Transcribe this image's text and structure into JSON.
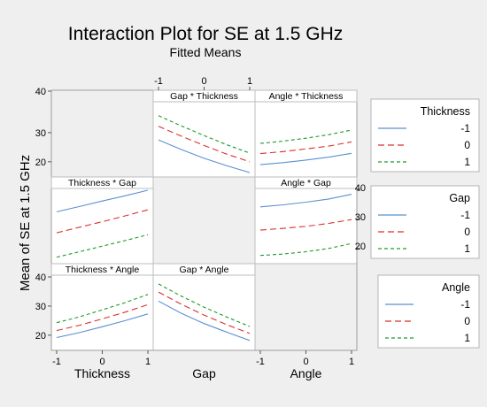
{
  "colors": {
    "background": "#efefef",
    "panel": "#ffffff",
    "empty_panel": "#efefef",
    "level_neg1": "#5b8fd1",
    "level_0": "#d9302a",
    "level_1": "#1d9a2a"
  },
  "chart_data": {
    "type": "line",
    "title": "Interaction Plot for SE at 1.5 GHz",
    "subtitle": "Fitted Means",
    "ylabel": "Mean of SE at 1.5 GHz",
    "factors": [
      "Thickness",
      "Gap",
      "Angle"
    ],
    "x_ticks": [
      "-1",
      "0",
      "1"
    ],
    "xlim": [
      -1,
      1
    ],
    "rows": [
      {
        "ylim": [
          16,
          40
        ],
        "y_ticks": [
          20,
          30,
          40
        ]
      },
      {
        "ylim": [
          16,
          40
        ],
        "y_ticks": [
          20,
          30,
          40
        ]
      },
      {
        "ylim": [
          16,
          40
        ],
        "y_ticks": [
          20,
          30,
          40
        ]
      }
    ],
    "panels": [
      {
        "title": "Gap * Thickness",
        "row": 0,
        "col": 1,
        "series": [
          {
            "level": "-1",
            "x": [
              -1,
              -0.5,
              0,
              0.5,
              1
            ],
            "y": [
              27.5,
              24.2,
              21.2,
              18.6,
              16.3
            ]
          },
          {
            "level": "0",
            "x": [
              -1,
              -0.5,
              0,
              0.5,
              1
            ],
            "y": [
              32.2,
              28.8,
              25.6,
              22.6,
              20.0
            ]
          },
          {
            "level": "1",
            "x": [
              -1,
              -0.5,
              0,
              0.5,
              1
            ],
            "y": [
              35.8,
              32.3,
              29.0,
              25.8,
              23.0
            ]
          }
        ]
      },
      {
        "title": "Angle * Thickness",
        "row": 0,
        "col": 2,
        "series": [
          {
            "level": "-1",
            "x": [
              -1,
              -0.5,
              0,
              0.5,
              1
            ],
            "y": [
              19.0,
              19.7,
              20.6,
              21.6,
              22.9
            ]
          },
          {
            "level": "0",
            "x": [
              -1,
              -0.5,
              0,
              0.5,
              1
            ],
            "y": [
              22.8,
              23.5,
              24.4,
              25.4,
              26.8
            ]
          },
          {
            "level": "1",
            "x": [
              -1,
              -0.5,
              0,
              0.5,
              1
            ],
            "y": [
              26.3,
              27.1,
              28.1,
              29.3,
              30.9
            ]
          }
        ]
      },
      {
        "title": "Thickness * Gap",
        "row": 1,
        "col": 0,
        "series": [
          {
            "level": "-1",
            "x": [
              -1,
              -0.5,
              0,
              0.5,
              1
            ],
            "y": [
              32.6,
              34.4,
              36.3,
              38.1,
              40.0
            ]
          },
          {
            "level": "0",
            "x": [
              -1,
              -0.5,
              0,
              0.5,
              1
            ],
            "y": [
              25.4,
              27.3,
              29.2,
              31.2,
              33.3
            ]
          },
          {
            "level": "1",
            "x": [
              -1,
              -0.5,
              0,
              0.5,
              1
            ],
            "y": [
              17.0,
              18.9,
              20.8,
              22.7,
              24.7
            ]
          }
        ]
      },
      {
        "title": "Angle * Gap",
        "row": 1,
        "col": 2,
        "series": [
          {
            "level": "-1",
            "x": [
              -1,
              -0.5,
              0,
              0.5,
              1
            ],
            "y": [
              34.3,
              35.0,
              35.9,
              37.0,
              38.6
            ]
          },
          {
            "level": "0",
            "x": [
              -1,
              -0.5,
              0,
              0.5,
              1
            ],
            "y": [
              26.3,
              26.9,
              27.6,
              28.6,
              29.9
            ]
          },
          {
            "level": "1",
            "x": [
              -1,
              -0.5,
              0,
              0.5,
              1
            ],
            "y": [
              17.6,
              18.1,
              18.9,
              20.0,
              21.7
            ]
          }
        ]
      },
      {
        "title": "Thickness * Angle",
        "row": 2,
        "col": 0,
        "series": [
          {
            "level": "-1",
            "x": [
              -1,
              -0.5,
              0,
              0.5,
              1
            ],
            "y": [
              19.2,
              20.9,
              22.9,
              25.0,
              27.3
            ]
          },
          {
            "level": "0",
            "x": [
              -1,
              -0.5,
              0,
              0.5,
              1
            ],
            "y": [
              21.6,
              23.4,
              25.6,
              27.9,
              30.5
            ]
          },
          {
            "level": "1",
            "x": [
              -1,
              -0.5,
              0,
              0.5,
              1
            ],
            "y": [
              24.3,
              26.3,
              28.7,
              31.2,
              34.0
            ]
          }
        ]
      },
      {
        "title": "Gap * Angle",
        "row": 2,
        "col": 1,
        "series": [
          {
            "level": "-1",
            "x": [
              -1,
              -0.5,
              0,
              0.5,
              1
            ],
            "y": [
              31.7,
              27.5,
              24.0,
              21.0,
              18.2
            ]
          },
          {
            "level": "0",
            "x": [
              -1,
              -0.5,
              0,
              0.5,
              1
            ],
            "y": [
              34.8,
              30.6,
              26.9,
              23.6,
              20.6
            ]
          },
          {
            "level": "1",
            "x": [
              -1,
              -0.5,
              0,
              0.5,
              1
            ],
            "y": [
              37.6,
              33.4,
              29.6,
              26.2,
              23.0
            ]
          }
        ]
      }
    ],
    "legends": [
      {
        "title": "Thickness",
        "entries": [
          "-1",
          "0",
          "1"
        ]
      },
      {
        "title": "Gap",
        "entries": [
          "-1",
          "0",
          "1"
        ],
        "y_ticks": [
          "40",
          "30",
          "20"
        ]
      },
      {
        "title": "Angle",
        "entries": [
          "-1",
          "0",
          "1"
        ]
      }
    ]
  }
}
